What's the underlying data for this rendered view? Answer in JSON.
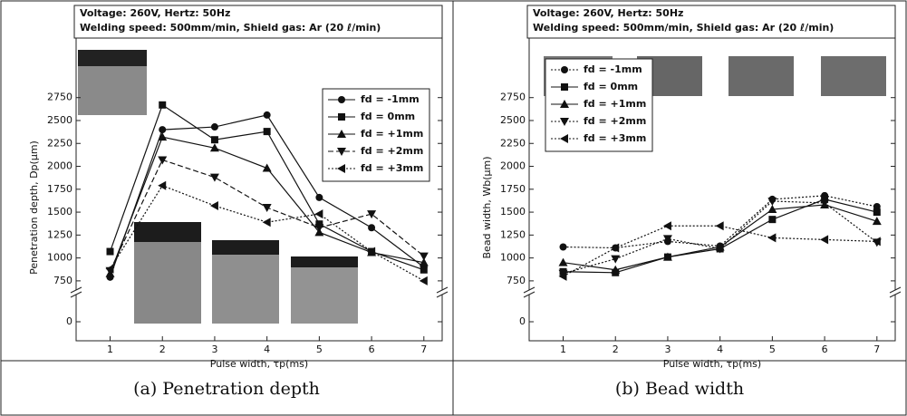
{
  "chart_data": [
    {
      "type": "line",
      "title_lines": [
        "Voltage: 260V, Hertz: 50Hz",
        "Welding speed: 500mm/min, Shield gas: Ar (20 ℓ/min)"
      ],
      "caption": "(a) Penetration depth",
      "x_label": "Pulse width, τp(ms)",
      "y_label": "Penetration depth, Dp(μm)",
      "x": [
        1,
        2,
        3,
        4,
        5,
        6,
        7
      ],
      "xlim": [
        0.35,
        7.35
      ],
      "xticks": [
        1,
        2,
        3,
        4,
        5,
        6,
        7
      ],
      "ylim": [
        0,
        3400
      ],
      "y_break": [
        500,
        650
      ],
      "yticks": [
        0,
        750,
        1000,
        1250,
        1500,
        1750,
        2000,
        2250,
        2500,
        2750
      ],
      "legend": "upper right",
      "series": [
        {
          "name": "fd = -1mm",
          "color": "#111",
          "marker": "circle",
          "dash": "solid",
          "values": [
            790,
            2400,
            2430,
            2560,
            1660,
            1330,
            900
          ]
        },
        {
          "name": "fd =  0mm",
          "color": "#111",
          "marker": "square",
          "dash": "solid",
          "values": [
            1070,
            2670,
            2290,
            2380,
            1370,
            1070,
            870
          ]
        },
        {
          "name": "fd = +1mm",
          "color": "#111",
          "marker": "triangle-up",
          "dash": "solid",
          "values": [
            830,
            2320,
            2200,
            1980,
            1280,
            1060,
            950
          ]
        },
        {
          "name": "fd = +2mm",
          "color": "#111",
          "marker": "triangle-down",
          "dash": "dashed",
          "values": [
            860,
            2070,
            1880,
            1550,
            1330,
            1480,
            1020
          ]
        },
        {
          "name": "fd = +3mm",
          "color": "#111",
          "marker": "triangle-left",
          "dash": "dotted",
          "values": [
            880,
            1790,
            1570,
            1390,
            1480,
            1070,
            750
          ]
        }
      ]
    },
    {
      "type": "line",
      "title_lines": [
        "Voltage: 260V, Hertz: 50Hz",
        "Welding speed: 500mm/min, Shield gas: Ar (20 ℓ/min)"
      ],
      "caption": "(b) Bead width",
      "x_label": "Pulse width, τp(ms)",
      "y_label": "Bead width, Wb(μm)",
      "x": [
        1,
        2,
        3,
        4,
        5,
        6,
        7
      ],
      "xlim": [
        0.35,
        7.35
      ],
      "xticks": [
        1,
        2,
        3,
        4,
        5,
        6,
        7
      ],
      "ylim": [
        0,
        3400
      ],
      "y_break": [
        500,
        650
      ],
      "yticks": [
        0,
        750,
        1000,
        1250,
        1500,
        1750,
        2000,
        2250,
        2500,
        2750
      ],
      "legend": "upper left",
      "series": [
        {
          "name": "fd = -1mm",
          "color": "#111",
          "marker": "circle",
          "dash": "dotted",
          "values": [
            1120,
            1110,
            1180,
            1130,
            1640,
            1680,
            1560
          ]
        },
        {
          "name": "fd =  0mm",
          "color": "#111",
          "marker": "square",
          "dash": "solid",
          "values": [
            850,
            840,
            1010,
            1100,
            1420,
            1640,
            1500
          ]
        },
        {
          "name": "fd = +1mm",
          "color": "#111",
          "marker": "triangle-up",
          "dash": "solid",
          "values": [
            950,
            870,
            1010,
            1120,
            1530,
            1580,
            1400
          ]
        },
        {
          "name": "fd = +2mm",
          "color": "#111",
          "marker": "triangle-down",
          "dash": "dotted",
          "values": [
            830,
            990,
            1210,
            1100,
            1620,
            1600,
            1170
          ]
        },
        {
          "name": "fd = +3mm",
          "color": "#111",
          "marker": "triangle-left",
          "dash": "dotted",
          "values": [
            800,
            1110,
            1350,
            1350,
            1220,
            1200,
            1180
          ]
        }
      ]
    }
  ]
}
